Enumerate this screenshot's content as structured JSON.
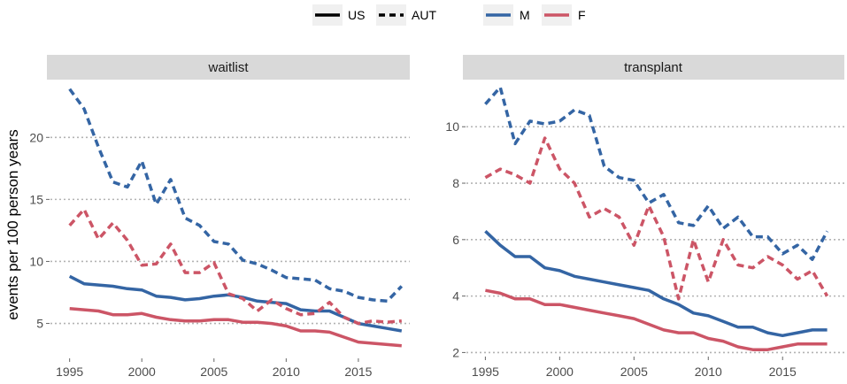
{
  "legend": {
    "linetype": [
      {
        "label": "US",
        "dash": "solid"
      },
      {
        "label": "AUT",
        "dash": "dashed"
      }
    ],
    "color": [
      {
        "label": "M",
        "color": "#3465a4"
      },
      {
        "label": "F",
        "color": "#cc5566"
      }
    ]
  },
  "ylabel": "events per 100 person years",
  "chart_data": [
    {
      "type": "line",
      "title": "waitlist",
      "xlabel": "",
      "ylabel": "events per 100 person years",
      "xlim": [
        1994.5,
        2018.5
      ],
      "ylim": [
        2.4,
        24.3
      ],
      "xticks": [
        1995,
        2000,
        2005,
        2010,
        2015
      ],
      "yticks": [
        5,
        10,
        15,
        20
      ],
      "x": [
        1995,
        1996,
        1997,
        1998,
        1999,
        2000,
        2001,
        2002,
        2003,
        2004,
        2005,
        2006,
        2007,
        2008,
        2009,
        2010,
        2011,
        2012,
        2013,
        2014,
        2015,
        2016,
        2017,
        2018
      ],
      "series": [
        {
          "name": "US M",
          "sex": "M",
          "country": "US",
          "color": "#3465a4",
          "dash": "solid",
          "values": [
            8.8,
            8.2,
            8.1,
            8.0,
            7.8,
            7.7,
            7.2,
            7.1,
            6.9,
            7.0,
            7.2,
            7.3,
            7.1,
            6.8,
            6.7,
            6.6,
            6.1,
            6.0,
            6.0,
            5.5,
            5.0,
            4.8,
            4.6,
            4.4
          ]
        },
        {
          "name": "US F",
          "sex": "F",
          "country": "US",
          "color": "#cc5566",
          "dash": "solid",
          "values": [
            6.2,
            6.1,
            6.0,
            5.7,
            5.7,
            5.8,
            5.5,
            5.3,
            5.2,
            5.2,
            5.3,
            5.3,
            5.1,
            5.1,
            5.0,
            4.8,
            4.4,
            4.4,
            4.3,
            3.9,
            3.5,
            3.4,
            3.3,
            3.2
          ]
        },
        {
          "name": "AUT M",
          "sex": "M",
          "country": "AUT",
          "color": "#3465a4",
          "dash": "dashed",
          "values": [
            23.9,
            22.3,
            19.2,
            16.4,
            16.0,
            18.1,
            14.6,
            16.6,
            13.5,
            12.9,
            11.6,
            11.4,
            10.1,
            9.8,
            9.3,
            8.7,
            8.6,
            8.5,
            7.8,
            7.6,
            7.1,
            6.9,
            6.8,
            8.0
          ]
        },
        {
          "name": "AUT F",
          "sex": "F",
          "country": "AUT",
          "color": "#cc5566",
          "dash": "dashed",
          "values": [
            12.9,
            14.2,
            11.8,
            13.1,
            11.7,
            9.7,
            9.8,
            11.4,
            9.1,
            9.1,
            9.9,
            7.4,
            7.0,
            6.0,
            6.9,
            6.2,
            5.7,
            5.8,
            6.7,
            5.5,
            5.0,
            5.2,
            5.1,
            5.2
          ]
        }
      ]
    },
    {
      "type": "line",
      "title": "transplant",
      "xlabel": "",
      "ylabel": "",
      "xlim": [
        1994.5,
        2018.5
      ],
      "ylim": [
        1.95,
        11.45
      ],
      "xticks": [
        1995,
        2000,
        2005,
        2010,
        2015
      ],
      "yticks": [
        2,
        4,
        6,
        8,
        10
      ],
      "x": [
        1995,
        1996,
        1997,
        1998,
        1999,
        2000,
        2001,
        2002,
        2003,
        2004,
        2005,
        2006,
        2007,
        2008,
        2009,
        2010,
        2011,
        2012,
        2013,
        2014,
        2015,
        2016,
        2017,
        2018
      ],
      "series": [
        {
          "name": "US M",
          "sex": "M",
          "country": "US",
          "color": "#3465a4",
          "dash": "solid",
          "values": [
            6.3,
            5.8,
            5.4,
            5.4,
            5.0,
            4.9,
            4.7,
            4.6,
            4.5,
            4.4,
            4.3,
            4.2,
            3.9,
            3.7,
            3.4,
            3.3,
            3.1,
            2.9,
            2.9,
            2.7,
            2.6,
            2.7,
            2.8,
            2.8
          ]
        },
        {
          "name": "US F",
          "sex": "F",
          "country": "US",
          "color": "#cc5566",
          "dash": "solid",
          "values": [
            4.2,
            4.1,
            3.9,
            3.9,
            3.7,
            3.7,
            3.6,
            3.5,
            3.4,
            3.3,
            3.2,
            3.0,
            2.8,
            2.7,
            2.7,
            2.5,
            2.4,
            2.2,
            2.1,
            2.1,
            2.2,
            2.3,
            2.3,
            2.3
          ]
        },
        {
          "name": "AUT M",
          "sex": "M",
          "country": "AUT",
          "color": "#3465a4",
          "dash": "dashed",
          "values": [
            10.8,
            11.4,
            9.4,
            10.2,
            10.1,
            10.2,
            10.6,
            10.4,
            8.6,
            8.2,
            8.1,
            7.3,
            7.6,
            6.6,
            6.5,
            7.2,
            6.4,
            6.8,
            6.1,
            6.1,
            5.5,
            5.8,
            5.3,
            6.3
          ]
        },
        {
          "name": "AUT F",
          "sex": "F",
          "country": "AUT",
          "color": "#cc5566",
          "dash": "dashed",
          "values": [
            8.2,
            8.5,
            8.3,
            8.0,
            9.6,
            8.5,
            8.0,
            6.8,
            7.1,
            6.8,
            5.8,
            7.2,
            6.1,
            3.9,
            6.0,
            4.5,
            6.0,
            5.1,
            5.0,
            5.4,
            5.1,
            4.6,
            4.9,
            4.0
          ]
        }
      ]
    }
  ]
}
